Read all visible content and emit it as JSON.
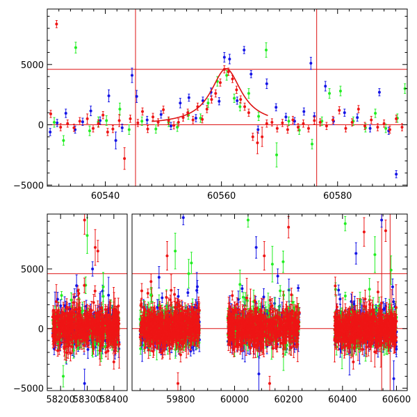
{
  "colors": {
    "blue": "#1414e6",
    "green": "#22ee22",
    "red": "#ee1515",
    "line": "#dd1111",
    "axis": "#000000"
  },
  "chart_data": [
    {
      "type": "scatter",
      "title": "",
      "xlabel": "",
      "ylabel": "",
      "xlim": [
        60530,
        60592
      ],
      "ylim": [
        -5100,
        9600
      ],
      "grid": false,
      "xticks": [
        60540,
        60560,
        60580
      ],
      "yticks": [
        -5000,
        0,
        5000
      ],
      "xtick_labels": [
        "60540",
        "60560",
        "60580"
      ],
      "ytick_labels": [
        "−5000",
        "0",
        "5000"
      ],
      "hlines": [
        0,
        4600
      ],
      "vlines": [
        60545.2,
        60576.4
      ],
      "model_curve": {
        "label": "",
        "peak_x": 60560.8,
        "peak_y": 4650,
        "baseline": 0,
        "x_range": [
          60548,
          60568
        ]
      },
      "series": [
        {
          "color_key": "blue",
          "x": [
            60530.5,
            60531.7,
            60533.2,
            60534.8,
            60536.1,
            60537.5,
            60539.1,
            60540.6,
            60541.8,
            60542.9,
            60544.6,
            60545.4,
            60547.2,
            60549.6,
            60551.3,
            60552.9,
            60554.4,
            60555.6,
            60556.8,
            60558.2,
            60559.6,
            60560.5,
            60561.4,
            60562.7,
            60563.9,
            60565.1,
            60566.3,
            60567.8,
            60569.4,
            60571.1,
            60572.6,
            60574.2,
            60575.4,
            60576.0,
            60577.9,
            60579.3,
            60581.2,
            60583.4,
            60585.6,
            60587.2,
            60588.8,
            60590.1
          ],
          "y": [
            -600,
            150,
            950,
            -400,
            250,
            1150,
            350,
            2400,
            -1300,
            -250,
            4100,
            2350,
            400,
            850,
            -100,
            1800,
            2250,
            550,
            2000,
            2700,
            1950,
            5600,
            5450,
            2000,
            6200,
            4200,
            -400,
            3400,
            1450,
            650,
            300,
            1100,
            5100,
            700,
            3200,
            300,
            1000,
            600,
            -300,
            2700,
            -500,
            -4100
          ],
          "yerr": [
            300,
            300,
            350,
            300,
            300,
            400,
            300,
            500,
            700,
            300,
            600,
            500,
            300,
            300,
            300,
            400,
            300,
            300,
            300,
            350,
            300,
            400,
            400,
            300,
            300,
            300,
            300,
            400,
            300,
            300,
            300,
            300,
            500,
            300,
            400,
            300,
            300,
            300,
            300,
            300,
            300,
            300
          ]
        },
        {
          "color_key": "green",
          "x": [
            60531.2,
            60532.8,
            60534.9,
            60537.3,
            60538.8,
            60540.2,
            60542.5,
            60544.1,
            60546.3,
            60548.7,
            60550.9,
            60552.4,
            60554.3,
            60556.4,
            60557.7,
            60559.3,
            60560.9,
            60562.2,
            60563.2,
            60564.7,
            60566.4,
            60567.7,
            60569.5,
            60571.6,
            60573.4,
            60575.6,
            60577.3,
            60578.6,
            60580.5,
            60582.7,
            60584.8,
            60586.5,
            60588.3,
            60590.3,
            60591.6
          ],
          "y": [
            200,
            -1300,
            6400,
            -500,
            250,
            350,
            1300,
            -400,
            300,
            -350,
            200,
            -200,
            800,
            550,
            1800,
            3600,
            4100,
            2200,
            1500,
            2600,
            700,
            6200,
            -2500,
            300,
            -450,
            -1600,
            300,
            2600,
            2800,
            300,
            -250,
            950,
            -300,
            550,
            3000
          ],
          "yerr": [
            400,
            400,
            450,
            400,
            400,
            400,
            500,
            400,
            350,
            350,
            350,
            350,
            350,
            350,
            350,
            400,
            400,
            350,
            350,
            400,
            350,
            600,
            1000,
            350,
            350,
            400,
            350,
            400,
            400,
            350,
            350,
            350,
            350,
            350,
            400
          ]
        },
        {
          "color_key": "red",
          "x": [
            60530.6,
            60531.6,
            60532.3,
            60533.5,
            60534.6,
            60535.6,
            60536.9,
            60537.9,
            60538.8,
            60539.6,
            60540.4,
            60541.3,
            60542.4,
            60543.3,
            60544.3,
            60545.6,
            60546.4,
            60547.3,
            60548.2,
            60549.1,
            60550.0,
            60550.9,
            60551.8,
            60552.6,
            60553.4,
            60554.2,
            60555.1,
            60555.9,
            60556.7,
            60557.5,
            60558.3,
            60559.0,
            60559.8,
            60560.5,
            60561.2,
            60561.9,
            60562.6,
            60563.3,
            60564.0,
            60564.7,
            60565.4,
            60566.2,
            60567.0,
            60567.8,
            60568.7,
            60569.6,
            60570.5,
            60571.4,
            60572.3,
            60573.2,
            60574.1,
            60575.0,
            60576.0,
            60577.0,
            60578.1,
            60579.2,
            60580.3,
            60581.4,
            60582.5,
            60583.6,
            60584.7,
            60585.8,
            60586.9,
            60588.0,
            60589.0,
            60590.1,
            60591.1
          ],
          "y": [
            900,
            8350,
            -200,
            100,
            -250,
            300,
            500,
            -300,
            100,
            800,
            -600,
            -350,
            350,
            -2800,
            500,
            150,
            1100,
            -350,
            650,
            200,
            1250,
            350,
            -50,
            200,
            600,
            1000,
            400,
            1500,
            450,
            1300,
            2100,
            2600,
            3500,
            4600,
            4400,
            3800,
            2900,
            2100,
            1500,
            1000,
            -1000,
            -1500,
            -1000,
            100,
            200,
            -300,
            150,
            -400,
            400,
            -200,
            100,
            -300,
            350,
            200,
            -100,
            400,
            1200,
            -300,
            200,
            1300,
            -100,
            400,
            -200,
            100,
            -400,
            500,
            -200
          ],
          "yerr": [
            300,
            300,
            300,
            300,
            300,
            300,
            400,
            300,
            300,
            300,
            300,
            300,
            500,
            900,
            300,
            300,
            300,
            300,
            300,
            300,
            300,
            300,
            300,
            300,
            300,
            300,
            300,
            300,
            300,
            300,
            300,
            300,
            300,
            300,
            300,
            300,
            300,
            300,
            300,
            300,
            300,
            900,
            800,
            300,
            300,
            300,
            300,
            300,
            300,
            300,
            300,
            300,
            300,
            300,
            300,
            300,
            300,
            300,
            300,
            300,
            300,
            300,
            300,
            300,
            300,
            300,
            300
          ]
        }
      ]
    },
    {
      "type": "scatter",
      "title": "",
      "xlabel": "",
      "ylabel": "",
      "ylim": [
        -5200,
        9600
      ],
      "grid": false,
      "yticks": [
        -5000,
        0,
        5000
      ],
      "ytick_labels": [
        "−5000",
        "0",
        "5000"
      ],
      "hlines": [
        0,
        4600
      ],
      "vlines": [
        60545.2,
        60576.4
      ],
      "x_break": true,
      "segments": [
        {
          "xlim": [
            58150,
            58450
          ],
          "xticks": [
            58200,
            58300,
            58400
          ],
          "xtick_labels": [
            "58200",
            "58300",
            "58400"
          ]
        },
        {
          "xlim": [
            59620,
            60640
          ],
          "xticks": [
            59800,
            60000,
            60200,
            60400,
            60600
          ],
          "xtick_labels": [
            "59800",
            "60000",
            "60200",
            "60400",
            "60600"
          ]
        }
      ],
      "observing_seasons": [
        {
          "x_range": [
            58170,
            58420
          ],
          "outliers": [
            [
              58240,
              2400
            ],
            [
              58260,
              3600
            ],
            [
              58290,
              9100
            ],
            [
              58300,
              7800
            ],
            [
              58320,
              5000
            ],
            [
              58340,
              6500
            ],
            [
              58360,
              3500
            ],
            [
              58380,
              2800
            ],
            [
              58400,
              -2800
            ],
            [
              58210,
              -4000
            ],
            [
              58290,
              -4600
            ],
            [
              58330,
              6800
            ]
          ]
        },
        {
          "x_range": [
            59650,
            59870
          ],
          "outliers": [
            [
              59690,
              2800
            ],
            [
              59720,
              4300
            ],
            [
              59750,
              6100
            ],
            [
              59780,
              6500
            ],
            [
              59810,
              9300
            ],
            [
              59790,
              -4600
            ],
            [
              59830,
              4600
            ],
            [
              59860,
              3200
            ],
            [
              59800,
              -2200
            ],
            [
              59840,
              5500
            ]
          ]
        },
        {
          "x_range": [
            59975,
            60240
          ],
          "outliers": [
            [
              60050,
              9100
            ],
            [
              60080,
              6800
            ],
            [
              60110,
              6100
            ],
            [
              60140,
              5400
            ],
            [
              60160,
              4400
            ],
            [
              60200,
              8500
            ],
            [
              60020,
              3700
            ],
            [
              60090,
              -3800
            ],
            [
              60130,
              -4600
            ],
            [
              60180,
              5600
            ]
          ]
        },
        {
          "x_range": [
            60370,
            60600
          ],
          "outliers": [
            [
              60410,
              8800
            ],
            [
              60450,
              6300
            ],
            [
              60480,
              8100
            ],
            [
              60520,
              6200
            ],
            [
              60545,
              9100
            ],
            [
              60560,
              8200
            ],
            [
              60580,
              4900
            ],
            [
              60590,
              -4200
            ],
            [
              60440,
              -2800
            ],
            [
              60500,
              3300
            ]
          ]
        }
      ]
    }
  ]
}
